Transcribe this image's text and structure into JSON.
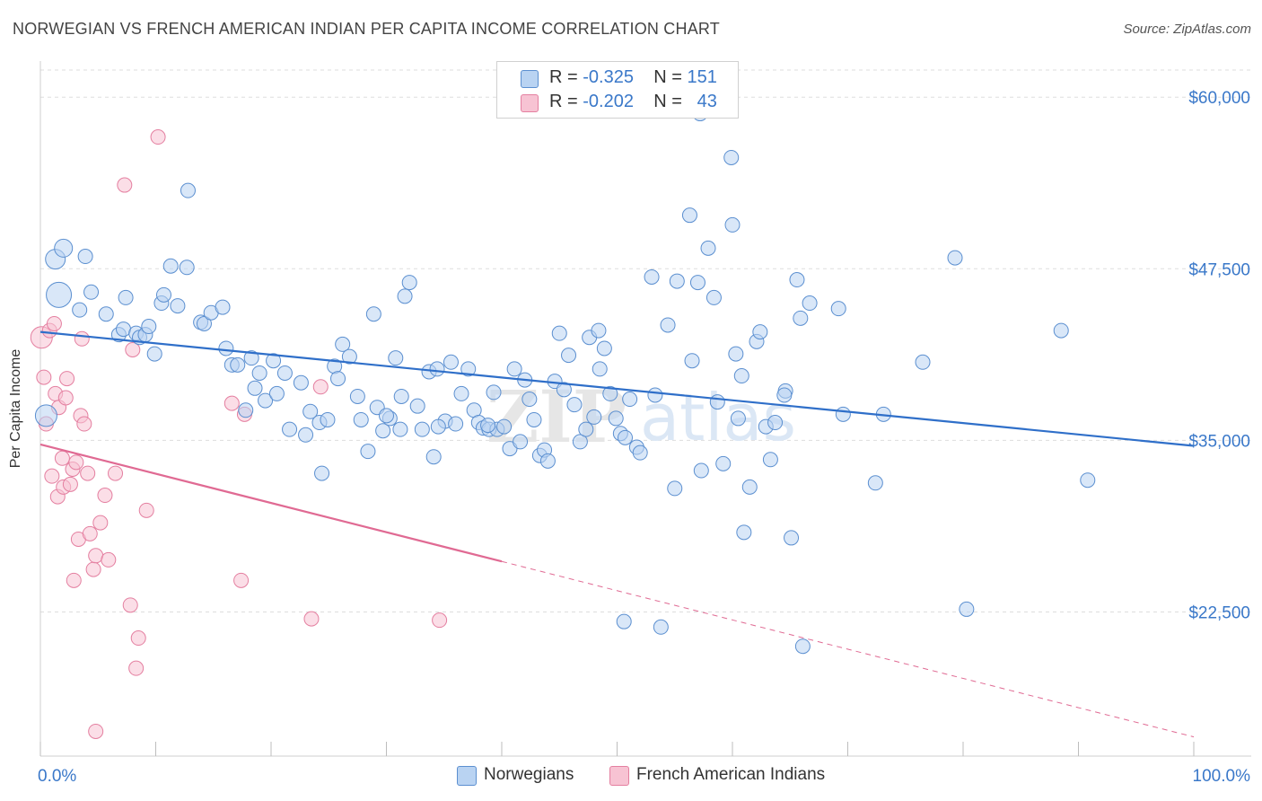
{
  "title": "NORWEGIAN VS FRENCH AMERICAN INDIAN PER CAPITA INCOME CORRELATION CHART",
  "source": "Source: ZipAtlas.com",
  "watermark": {
    "zip": "ZIP",
    "atlas": "atlas"
  },
  "legend": [
    {
      "r_label": "R = ",
      "r_value": "-0.325",
      "n_label": "N = ",
      "n_value": "151"
    },
    {
      "r_label": "R = ",
      "r_value": "-0.202",
      "n_label": "N = ",
      "n_value": "43"
    }
  ],
  "bottom_legend": [
    "Norwegians",
    "French American Indians"
  ],
  "colors": {
    "blue_fill": "#b9d3f2",
    "blue_stroke": "#5b8fd0",
    "blue_line": "#2f6fc9",
    "pink_fill": "#f7c3d3",
    "pink_stroke": "#e47fa0",
    "pink_line": "#e06a93",
    "axis_text": "#3a78c9",
    "grid": "#dddddd"
  },
  "chart_data": {
    "type": "scatter",
    "ylabel": "Per Capita Income",
    "xlim": [
      0,
      100
    ],
    "ylim": [
      12000,
      62500
    ],
    "x_ticks": [
      {
        "value": 0,
        "label": "0.0%"
      },
      {
        "value": 100,
        "label": "100.0%"
      }
    ],
    "y_ticks": [
      {
        "value": 22500,
        "label": "$22,500"
      },
      {
        "value": 35000,
        "label": "$35,000"
      },
      {
        "value": 47500,
        "label": "$47,500"
      },
      {
        "value": 60000,
        "label": "$60,000"
      }
    ],
    "series": [
      {
        "name": "Norwegians",
        "r": -0.325,
        "n": 151,
        "trend": {
          "x0": 0,
          "y0": 42900,
          "x1": 100,
          "y1": 34600,
          "dashed_from": null
        },
        "points": [
          [
            1.6,
            45600,
            14
          ],
          [
            1.3,
            48200,
            11
          ],
          [
            2.0,
            49000,
            10
          ],
          [
            3.9,
            48400,
            8
          ],
          [
            4.4,
            45800,
            8
          ],
          [
            3.4,
            44500,
            8
          ],
          [
            5.7,
            44200,
            8
          ],
          [
            6.8,
            42700,
            8
          ],
          [
            7.2,
            43100,
            8
          ],
          [
            7.4,
            45400,
            8
          ],
          [
            8.3,
            42800,
            8
          ],
          [
            8.6,
            42500,
            8
          ],
          [
            9.1,
            42700,
            8
          ],
          [
            9.4,
            43300,
            8
          ],
          [
            9.9,
            41300,
            8
          ],
          [
            10.5,
            45000,
            8
          ],
          [
            10.7,
            45600,
            8
          ],
          [
            11.3,
            47700,
            8
          ],
          [
            11.9,
            44800,
            8
          ],
          [
            12.7,
            47600,
            8
          ],
          [
            13.9,
            43600,
            8
          ],
          [
            14.2,
            43500,
            8
          ],
          [
            14.8,
            44300,
            8
          ],
          [
            15.8,
            44700,
            8
          ],
          [
            16.1,
            41700,
            8
          ],
          [
            16.6,
            40500,
            8
          ],
          [
            17.1,
            40500,
            8
          ],
          [
            17.8,
            37200,
            8
          ],
          [
            18.3,
            41000,
            8
          ],
          [
            18.6,
            38800,
            8
          ],
          [
            19.0,
            39900,
            8
          ],
          [
            19.5,
            37900,
            8
          ],
          [
            20.2,
            40800,
            8
          ],
          [
            20.5,
            38400,
            8
          ],
          [
            21.2,
            39900,
            8
          ],
          [
            21.6,
            35800,
            8
          ],
          [
            22.6,
            39200,
            8
          ],
          [
            23.0,
            35400,
            8
          ],
          [
            23.4,
            37100,
            8
          ],
          [
            24.2,
            36300,
            8
          ],
          [
            24.4,
            32600,
            8
          ],
          [
            24.9,
            36500,
            8
          ],
          [
            25.5,
            40400,
            8
          ],
          [
            25.8,
            39500,
            8
          ],
          [
            26.2,
            42000,
            8
          ],
          [
            26.8,
            41100,
            8
          ],
          [
            27.5,
            38200,
            8
          ],
          [
            27.8,
            36500,
            8
          ],
          [
            28.4,
            34200,
            8
          ],
          [
            28.9,
            44200,
            8
          ],
          [
            29.2,
            37400,
            8
          ],
          [
            29.7,
            35700,
            8
          ],
          [
            30.3,
            36600,
            8
          ],
          [
            30.8,
            41000,
            8
          ],
          [
            31.2,
            35800,
            8
          ],
          [
            31.6,
            45500,
            8
          ],
          [
            32.0,
            46500,
            8
          ],
          [
            32.7,
            37500,
            8
          ],
          [
            33.1,
            35800,
            8
          ],
          [
            33.7,
            40000,
            8
          ],
          [
            34.1,
            33800,
            8
          ],
          [
            34.4,
            40200,
            8
          ],
          [
            35.1,
            36400,
            8
          ],
          [
            35.6,
            40700,
            8
          ],
          [
            36.0,
            36200,
            8
          ],
          [
            36.5,
            38400,
            8
          ],
          [
            37.1,
            40200,
            8
          ],
          [
            37.6,
            37200,
            8
          ],
          [
            38.0,
            36300,
            8
          ],
          [
            38.4,
            35900,
            8
          ],
          [
            38.9,
            35800,
            8
          ],
          [
            39.3,
            38500,
            8
          ],
          [
            39.6,
            35800,
            8
          ],
          [
            40.2,
            36000,
            8
          ],
          [
            40.7,
            34400,
            8
          ],
          [
            41.1,
            40200,
            8
          ],
          [
            41.6,
            34900,
            8
          ],
          [
            42.0,
            39400,
            8
          ],
          [
            42.4,
            38000,
            8
          ],
          [
            42.8,
            36500,
            8
          ],
          [
            43.3,
            33900,
            8
          ],
          [
            43.7,
            34300,
            8
          ],
          [
            44.0,
            33500,
            8
          ],
          [
            44.6,
            39300,
            8
          ],
          [
            45.0,
            42800,
            8
          ],
          [
            45.4,
            38700,
            8
          ],
          [
            45.8,
            41200,
            8
          ],
          [
            46.3,
            37600,
            8
          ],
          [
            46.8,
            34900,
            8
          ],
          [
            47.3,
            35800,
            8
          ],
          [
            47.6,
            42500,
            8
          ],
          [
            48.0,
            36700,
            8
          ],
          [
            48.4,
            43000,
            8
          ],
          [
            48.9,
            41700,
            8
          ],
          [
            49.4,
            38400,
            8
          ],
          [
            49.9,
            36600,
            8
          ],
          [
            50.3,
            35500,
            8
          ],
          [
            50.7,
            35200,
            8
          ],
          [
            51.1,
            38000,
            8
          ],
          [
            51.7,
            34500,
            8
          ],
          [
            52.0,
            34100,
            8
          ],
          [
            53.0,
            46900,
            8
          ],
          [
            53.3,
            38300,
            8
          ],
          [
            54.4,
            43400,
            8
          ],
          [
            55.0,
            31500,
            8
          ],
          [
            56.3,
            51400,
            8
          ],
          [
            56.5,
            40800,
            8
          ],
          [
            57.0,
            46500,
            8
          ],
          [
            57.3,
            32800,
            8
          ],
          [
            57.9,
            49000,
            8
          ],
          [
            58.4,
            45400,
            8
          ],
          [
            58.7,
            37800,
            8
          ],
          [
            59.2,
            33300,
            8
          ],
          [
            60.0,
            50700,
            8
          ],
          [
            60.3,
            41300,
            8
          ],
          [
            60.8,
            39700,
            8
          ],
          [
            61.0,
            28300,
            8
          ],
          [
            61.5,
            31600,
            8
          ],
          [
            62.1,
            42200,
            8
          ],
          [
            62.4,
            42900,
            8
          ],
          [
            62.9,
            36000,
            8
          ],
          [
            63.3,
            33600,
            8
          ],
          [
            63.7,
            36300,
            8
          ],
          [
            64.6,
            38600,
            8
          ],
          [
            65.1,
            27900,
            8
          ],
          [
            65.6,
            46700,
            8
          ],
          [
            65.9,
            43900,
            8
          ],
          [
            66.7,
            45000,
            8
          ],
          [
            69.2,
            44600,
            8
          ],
          [
            69.6,
            36900,
            8
          ],
          [
            72.4,
            31900,
            8
          ],
          [
            76.5,
            40700,
            8
          ],
          [
            79.3,
            48300,
            8
          ],
          [
            80.3,
            22700,
            8
          ],
          [
            88.5,
            43000,
            8
          ],
          [
            90.8,
            32100,
            8
          ],
          [
            66.1,
            20000,
            8
          ],
          [
            59.9,
            55600,
            8
          ],
          [
            12.8,
            53200,
            8
          ],
          [
            53.8,
            21400,
            8
          ],
          [
            50.6,
            21800,
            8
          ],
          [
            0.5,
            36800,
            12
          ],
          [
            57.2,
            58800,
            8
          ],
          [
            55.2,
            46600,
            8
          ],
          [
            64.5,
            38300,
            8
          ],
          [
            60.5,
            36600,
            8
          ],
          [
            73.1,
            36900,
            8
          ],
          [
            48.5,
            40200,
            8
          ],
          [
            38.8,
            36100,
            8
          ],
          [
            34.5,
            36000,
            8
          ],
          [
            30.0,
            36800,
            8
          ],
          [
            31.3,
            38200,
            8
          ]
        ]
      },
      {
        "name": "French American Indians",
        "r": -0.202,
        "n": 43,
        "trend": {
          "x0": 0,
          "y0": 34700,
          "x1": 100,
          "y1": 13400,
          "dashed_from": 40
        },
        "points": [
          [
            0.1,
            42500,
            12
          ],
          [
            0.3,
            39600,
            8
          ],
          [
            0.5,
            36200,
            8
          ],
          [
            0.8,
            43000,
            8
          ],
          [
            1.0,
            32400,
            8
          ],
          [
            1.2,
            43500,
            8
          ],
          [
            1.3,
            38400,
            8
          ],
          [
            1.5,
            30900,
            8
          ],
          [
            1.6,
            37400,
            8
          ],
          [
            1.9,
            33700,
            8
          ],
          [
            2.0,
            31600,
            8
          ],
          [
            2.2,
            38100,
            8
          ],
          [
            2.3,
            39500,
            8
          ],
          [
            2.6,
            31800,
            8
          ],
          [
            2.8,
            32900,
            8
          ],
          [
            2.9,
            24800,
            8
          ],
          [
            3.1,
            33400,
            8
          ],
          [
            3.3,
            27800,
            8
          ],
          [
            3.5,
            36800,
            8
          ],
          [
            3.6,
            42400,
            8
          ],
          [
            3.8,
            36200,
            8
          ],
          [
            4.1,
            32600,
            8
          ],
          [
            4.3,
            28200,
            8
          ],
          [
            4.6,
            25600,
            8
          ],
          [
            4.8,
            26600,
            8
          ],
          [
            5.2,
            29000,
            8
          ],
          [
            5.6,
            31000,
            8
          ],
          [
            5.9,
            26300,
            8
          ],
          [
            6.5,
            32600,
            8
          ],
          [
            7.3,
            53600,
            8
          ],
          [
            7.8,
            23000,
            8
          ],
          [
            8.3,
            18400,
            8
          ],
          [
            8.5,
            20600,
            8
          ],
          [
            9.2,
            29900,
            8
          ],
          [
            10.2,
            57100,
            8
          ],
          [
            16.6,
            37700,
            8
          ],
          [
            17.4,
            24800,
            8
          ],
          [
            17.7,
            36900,
            8
          ],
          [
            23.5,
            22000,
            8
          ],
          [
            24.3,
            38900,
            8
          ],
          [
            34.6,
            21900,
            8
          ],
          [
            4.8,
            13800,
            8
          ],
          [
            8.0,
            41600,
            8
          ]
        ]
      }
    ],
    "grid": "dashed horizontal",
    "legend_position": "top-center"
  }
}
